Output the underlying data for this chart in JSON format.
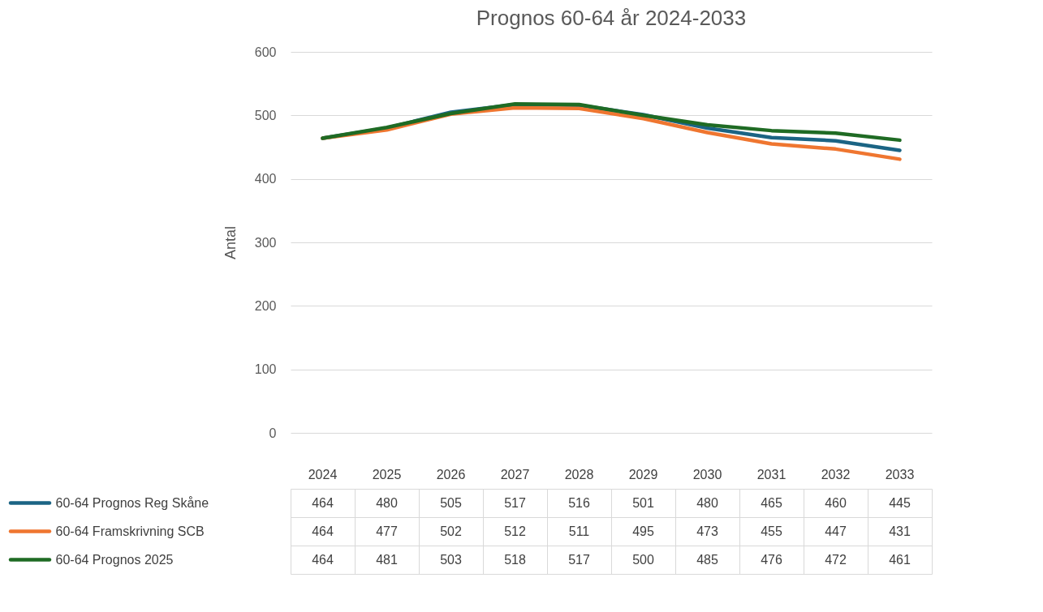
{
  "chart_data": {
    "type": "line",
    "title": "Prognos 60-64 år 2024-2033",
    "ylabel": "Antal",
    "categories": [
      "2024",
      "2025",
      "2026",
      "2027",
      "2028",
      "2029",
      "2030",
      "2031",
      "2032",
      "2033"
    ],
    "series": [
      {
        "name": "60-64 Prognos Reg Skåne",
        "color": "#1b6484",
        "values": [
          464,
          480,
          505,
          517,
          516,
          501,
          480,
          465,
          460,
          445
        ]
      },
      {
        "name": "60-64 Framskrivning SCB",
        "color": "#ef7630",
        "values": [
          464,
          477,
          502,
          512,
          511,
          495,
          473,
          455,
          447,
          431
        ]
      },
      {
        "name": "60-64 Prognos 2025",
        "color": "#1f6b24",
        "values": [
          464,
          481,
          503,
          518,
          517,
          500,
          485,
          476,
          472,
          461
        ]
      }
    ],
    "ylim": [
      0,
      600
    ],
    "yticks": [
      0,
      100,
      200,
      300,
      400,
      500,
      600
    ],
    "grid": "y",
    "legend": "bottom",
    "data_labels": true,
    "line_style": "solid",
    "marker": "none"
  }
}
